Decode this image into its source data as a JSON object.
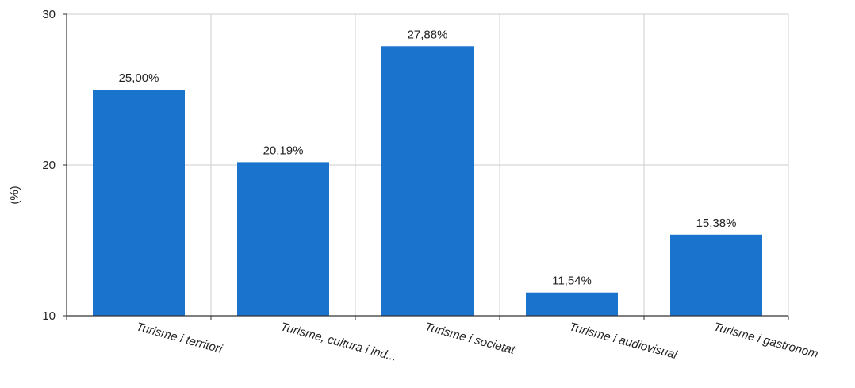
{
  "chart_data": {
    "type": "bar",
    "categories": [
      "Turisme i territori",
      "Turisme, cultura i ind...",
      "Turisme i societat",
      "Turisme i audiovisual",
      "Turisme i gastronom"
    ],
    "values": [
      25.0,
      20.19,
      27.88,
      11.54,
      15.38
    ],
    "data_labels": [
      "25,00%",
      "20,19%",
      "27,88%",
      "11,54%",
      "15,38%"
    ],
    "title": "",
    "xlabel": "",
    "ylabel": "(%)",
    "ylim": [
      10,
      30
    ],
    "yticks": [
      10,
      20,
      30
    ],
    "ytick_labels": [
      "10",
      "20",
      "30"
    ],
    "grid": true,
    "bar_color": "#1a73cc",
    "grid_color": "#cccccc",
    "axis_color": "#333333"
  }
}
